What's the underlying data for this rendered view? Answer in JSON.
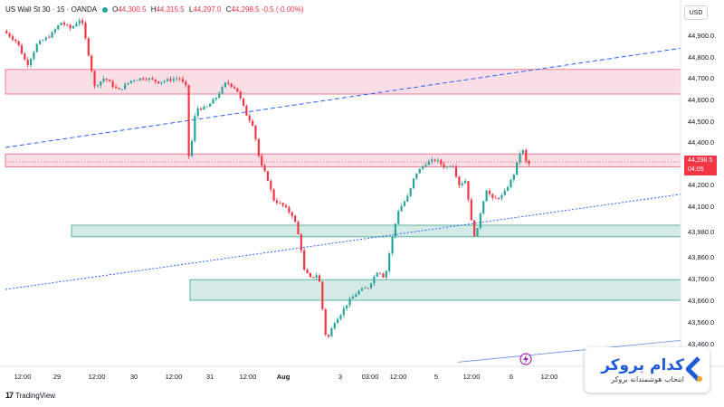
{
  "header": {
    "symbol": "US Wall St 30 · 15 · OANDA",
    "open_label": "O",
    "open": "44,300.5",
    "high_label": "H",
    "high": "44,315.5",
    "low_label": "L",
    "low": "44,297.0",
    "close_label": "C",
    "close": "44,298.5",
    "change": "-0.5 (-0.00%)"
  },
  "currency_button": "USD",
  "price_tag": {
    "price": "44,298.5",
    "countdown": "04:05"
  },
  "footer_logo": {
    "mark": "17",
    "text": "TradingView"
  },
  "brand": {
    "name": "کدام بروکر",
    "tagline": "انتخاب هوشمندانه بروکر"
  },
  "colors": {
    "up": "#26a69a",
    "down": "#f23645",
    "resistance_zone": "#f8d6de",
    "support_zone": "#cfe9e2",
    "trendline": "#2962ff"
  },
  "chart_data": {
    "type": "candlestick",
    "y_ticks": [
      "44,900.0",
      "44,800.0",
      "44,700.0",
      "44,600.0",
      "44,500.0",
      "44,400.0",
      "44,300.0",
      "44,200.0",
      "44,100.0",
      "43,980.0",
      "43,860.0",
      "43,760.0",
      "43,660.0",
      "43,560.0",
      "43,460.0"
    ],
    "x_ticks": [
      "12:00",
      "29",
      "12:00",
      "30",
      "12:00",
      "31",
      "12:00",
      "Aug",
      "3",
      "03:00",
      "12:00",
      "5",
      "12:00",
      "6",
      "12:00"
    ],
    "zones": [
      {
        "kind": "resistance",
        "from": 44625,
        "to": 44740
      },
      {
        "kind": "resistance",
        "from": 44285,
        "to": 44345
      },
      {
        "kind": "support",
        "from": 43955,
        "to": 44010
      },
      {
        "kind": "support",
        "from": 43660,
        "to": 43755
      }
    ],
    "trendlines": [
      {
        "style": "dashed",
        "from": [
          0,
          44375
        ],
        "to": [
          1,
          44840
        ]
      },
      {
        "style": "dotted",
        "from": [
          0,
          43710
        ],
        "to": [
          1,
          44155
        ]
      },
      {
        "style": "solid",
        "from": [
          0.67,
          43375
        ],
        "to": [
          1,
          43475
        ]
      }
    ],
    "last_price": 44298.5,
    "path": [
      [
        0.0,
        44920
      ],
      [
        0.02,
        44870
      ],
      [
        0.035,
        44760
      ],
      [
        0.05,
        44860
      ],
      [
        0.07,
        44900
      ],
      [
        0.085,
        44960
      ],
      [
        0.1,
        44930
      ],
      [
        0.115,
        44980
      ],
      [
        0.125,
        44830
      ],
      [
        0.135,
        44660
      ],
      [
        0.15,
        44700
      ],
      [
        0.17,
        44640
      ],
      [
        0.19,
        44690
      ],
      [
        0.21,
        44700
      ],
      [
        0.23,
        44680
      ],
      [
        0.245,
        44690
      ],
      [
        0.26,
        44700
      ],
      [
        0.27,
        44660
      ],
      [
        0.275,
        44300
      ],
      [
        0.285,
        44560
      ],
      [
        0.3,
        44560
      ],
      [
        0.315,
        44610
      ],
      [
        0.33,
        44680
      ],
      [
        0.345,
        44650
      ],
      [
        0.36,
        44530
      ],
      [
        0.37,
        44480
      ],
      [
        0.38,
        44300
      ],
      [
        0.39,
        44240
      ],
      [
        0.4,
        44130
      ],
      [
        0.415,
        44100
      ],
      [
        0.43,
        44050
      ],
      [
        0.44,
        43920
      ],
      [
        0.445,
        43800
      ],
      [
        0.455,
        43760
      ],
      [
        0.465,
        43780
      ],
      [
        0.47,
        43720
      ],
      [
        0.475,
        43520
      ],
      [
        0.48,
        43480
      ],
      [
        0.49,
        43560
      ],
      [
        0.5,
        43600
      ],
      [
        0.51,
        43650
      ],
      [
        0.525,
        43700
      ],
      [
        0.54,
        43720
      ],
      [
        0.555,
        43800
      ],
      [
        0.565,
        43760
      ],
      [
        0.575,
        43940
      ],
      [
        0.585,
        44080
      ],
      [
        0.6,
        44150
      ],
      [
        0.61,
        44250
      ],
      [
        0.625,
        44300
      ],
      [
        0.64,
        44320
      ],
      [
        0.655,
        44280
      ],
      [
        0.665,
        44300
      ],
      [
        0.675,
        44200
      ],
      [
        0.685,
        44220
      ],
      [
        0.695,
        43980
      ],
      [
        0.7,
        43950
      ],
      [
        0.705,
        44050
      ],
      [
        0.715,
        44180
      ],
      [
        0.725,
        44130
      ],
      [
        0.74,
        44150
      ],
      [
        0.755,
        44240
      ],
      [
        0.765,
        44350
      ],
      [
        0.77,
        44360
      ],
      [
        0.775,
        44298.5
      ]
    ]
  }
}
